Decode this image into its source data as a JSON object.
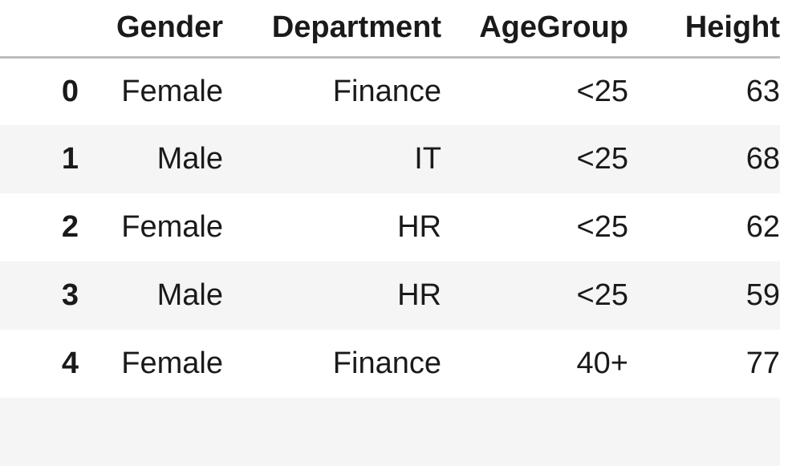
{
  "table": {
    "columns": [
      "",
      "Gender",
      "Department",
      "AgeGroup",
      "Height"
    ],
    "rows": [
      {
        "index": "0",
        "Gender": "Female",
        "Department": "Finance",
        "AgeGroup": "<25",
        "Height": "63"
      },
      {
        "index": "1",
        "Gender": "Male",
        "Department": "IT",
        "AgeGroup": "<25",
        "Height": "68"
      },
      {
        "index": "2",
        "Gender": "Female",
        "Department": "HR",
        "AgeGroup": "<25",
        "Height": "62"
      },
      {
        "index": "3",
        "Gender": "Male",
        "Department": "HR",
        "AgeGroup": "<25",
        "Height": "59"
      },
      {
        "index": "4",
        "Gender": "Female",
        "Department": "Finance",
        "AgeGroup": "40+",
        "Height": "77"
      }
    ]
  },
  "colors": {
    "header_rule": "#bdbdbd",
    "stripe": "#f5f5f5",
    "text": "#1a1a1a"
  }
}
